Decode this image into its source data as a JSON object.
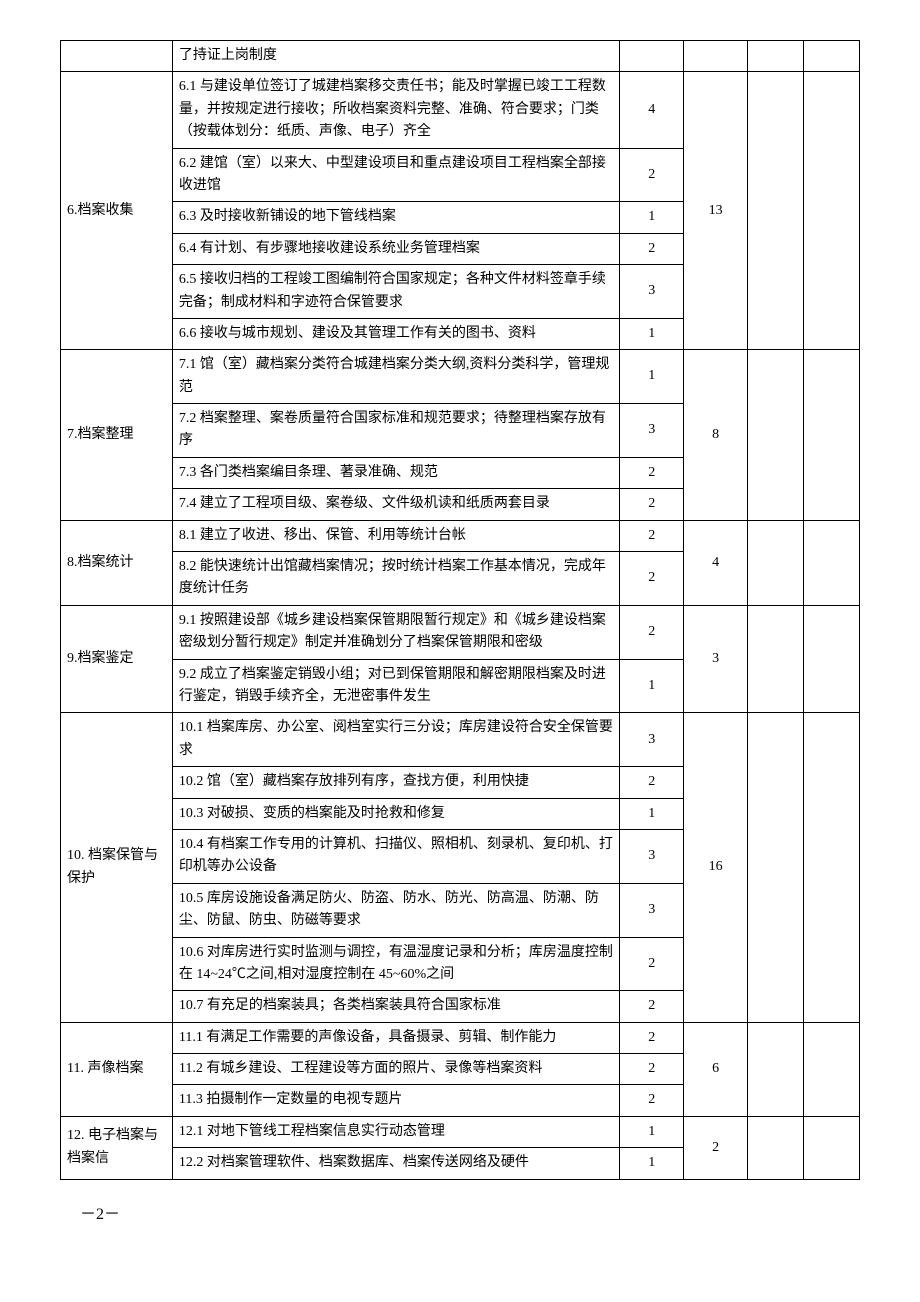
{
  "rows": [
    {
      "category": "",
      "item": "了持证上岗制度",
      "score": "",
      "total": "",
      "isFragment": true
    },
    {
      "category": "6.档案收集",
      "categoryRowspan": 6,
      "item": "6.1 与建设单位签订了城建档案移交责任书；能及时掌握已竣工工程数量，并按规定进行接收；所收档案资料完整、准确、符合要求；门类（按载体划分：纸质、声像、电子）齐全",
      "score": "4",
      "total": "13",
      "totalRowspan": 6
    },
    {
      "item": "6.2 建馆（室）以来大、中型建设项目和重点建设项目工程档案全部接收进馆",
      "score": "2"
    },
    {
      "item": "6.3 及时接收新铺设的地下管线档案",
      "score": "1"
    },
    {
      "item": "6.4 有计划、有步骤地接收建设系统业务管理档案",
      "score": "2"
    },
    {
      "item": "6.5 接收归档的工程竣工图编制符合国家规定；各种文件材料签章手续完备；制成材料和字迹符合保管要求",
      "score": "3"
    },
    {
      "item": "6.6 接收与城市规划、建设及其管理工作有关的图书、资料",
      "score": "1"
    },
    {
      "category": "7.档案整理",
      "categoryRowspan": 4,
      "item": "7.1 馆（室）藏档案分类符合城建档案分类大纲,资料分类科学，管理规范",
      "score": "1",
      "total": "8",
      "totalRowspan": 4
    },
    {
      "item": "7.2 档案整理、案卷质量符合国家标准和规范要求；待整理档案存放有序",
      "score": "3"
    },
    {
      "item": "7.3 各门类档案编目条理、著录准确、规范",
      "score": "2"
    },
    {
      "item": "7.4 建立了工程项目级、案卷级、文件级机读和纸质两套目录",
      "score": "2"
    },
    {
      "category": "8.档案统计",
      "categoryRowspan": 2,
      "item": "8.1 建立了收进、移出、保管、利用等统计台帐",
      "score": "2",
      "total": "4",
      "totalRowspan": 2
    },
    {
      "item": "8.2 能快速统计出馆藏档案情况；按时统计档案工作基本情况，完成年度统计任务",
      "score": "2"
    },
    {
      "category": "9.档案鉴定",
      "categoryRowspan": 2,
      "item": "9.1 按照建设部《城乡建设档案保管期限暂行规定》和《城乡建设档案密级划分暂行规定》制定并准确划分了档案保管期限和密级",
      "score": "2",
      "total": "3",
      "totalRowspan": 2
    },
    {
      "item": "9.2 成立了档案鉴定销毁小组；对已到保管期限和解密期限档案及时进行鉴定，销毁手续齐全，无泄密事件发生",
      "score": "1"
    },
    {
      "category": "10. 档案保管与保护",
      "categoryRowspan": 7,
      "item": "10.1 档案库房、办公室、阅档室实行三分设；库房建设符合安全保管要求",
      "score": "3",
      "total": "16",
      "totalRowspan": 7
    },
    {
      "item": "10.2 馆（室）藏档案存放排列有序，查找方便，利用快捷",
      "score": "2"
    },
    {
      "item": "10.3 对破损、变质的档案能及时抢救和修复",
      "score": "1"
    },
    {
      "item": "10.4 有档案工作专用的计算机、扫描仪、照相机、刻录机、复印机、打印机等办公设备",
      "score": "3"
    },
    {
      "item": "10.5 库房设施设备满足防火、防盗、防水、防光、防高温、防潮、防尘、防鼠、防虫、防磁等要求",
      "score": "3"
    },
    {
      "item": "10.6 对库房进行实时监测与调控，有温湿度记录和分析；库房温度控制在 14~24℃之间,相对湿度控制在 45~60%之间",
      "score": "2"
    },
    {
      "item": "10.7 有充足的档案装具；各类档案装具符合国家标准",
      "score": "2"
    },
    {
      "category": "11. 声像档案",
      "categoryRowspan": 3,
      "item": "11.1 有满足工作需要的声像设备，具备摄录、剪辑、制作能力",
      "score": "2",
      "total": "6",
      "totalRowspan": 3
    },
    {
      "item": "11.2 有城乡建设、工程建设等方面的照片、录像等档案资料",
      "score": "2"
    },
    {
      "item": "11.3 拍摄制作一定数量的电视专题片",
      "score": "2"
    },
    {
      "category": "12. 电子档案与档案信",
      "categoryRowspan": 2,
      "item": "12.1 对地下管线工程档案信息实行动态管理",
      "score": "1",
      "total": "2",
      "totalRowspan": 2
    },
    {
      "item": "12.2 对档案管理软件、档案数据库、档案传送网络及硬件",
      "score": "1"
    }
  ],
  "pageNumber": "－2－"
}
